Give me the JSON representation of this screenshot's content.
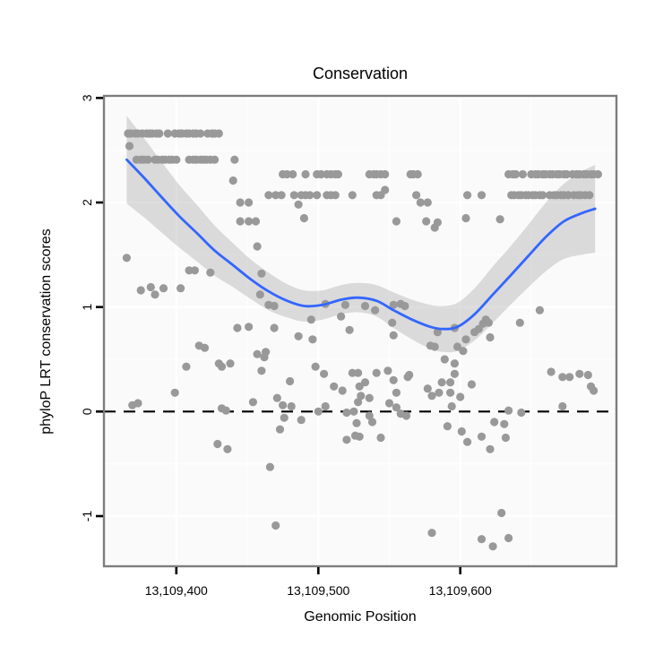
{
  "chart_data": {
    "type": "scatter",
    "title": "Conservation",
    "xlabel": "Genomic Position",
    "ylabel": "phyloP LRT conservation scores",
    "xlim": [
      13109349,
      13109710
    ],
    "ylim": [
      -1.48,
      3.02
    ],
    "x_ticks": [
      13109400,
      13109500,
      13109600
    ],
    "x_tick_labels": [
      "13,109,400",
      "13,109,500",
      "13,109,600"
    ],
    "y_ticks": [
      -1,
      0,
      1,
      2,
      3
    ],
    "y_tick_labels": [
      "-1",
      "0",
      "1",
      "2",
      "3"
    ],
    "x_minor": [
      13109450,
      13109550,
      13109650
    ],
    "y_minor": [
      -0.5,
      0.5,
      1.5,
      2.5
    ],
    "grid": "major+minor",
    "legend_position": "none",
    "hline": 0,
    "colors": {
      "point": "#999999",
      "smooth_line": "#3366FF",
      "ribbon": "#999999",
      "ribbon_alpha": 0.32,
      "zero_line": "#000000",
      "panel_bg": "#fafafa",
      "grid_line": "#ffffff",
      "panel_border": "#7d7d7d",
      "text": "#000000"
    },
    "smooth": [
      [
        13109365,
        2.41,
        0.42
      ],
      [
        13109377,
        2.24,
        0.38
      ],
      [
        13109389,
        2.06,
        0.34
      ],
      [
        13109402,
        1.87,
        0.3
      ],
      [
        13109415,
        1.7,
        0.27
      ],
      [
        13109427,
        1.54,
        0.24
      ],
      [
        13109440,
        1.4,
        0.21
      ],
      [
        13109452,
        1.27,
        0.19
      ],
      [
        13109465,
        1.15,
        0.18
      ],
      [
        13109478,
        1.06,
        0.16
      ],
      [
        13109490,
        1.01,
        0.15
      ],
      [
        13109503,
        1.02,
        0.14
      ],
      [
        13109516,
        1.07,
        0.14
      ],
      [
        13109528,
        1.09,
        0.14
      ],
      [
        13109541,
        1.06,
        0.15
      ],
      [
        13109553,
        0.97,
        0.17
      ],
      [
        13109566,
        0.88,
        0.19
      ],
      [
        13109579,
        0.81,
        0.21
      ],
      [
        13109588,
        0.79,
        0.22
      ],
      [
        13109598,
        0.81,
        0.23
      ],
      [
        13109610,
        0.93,
        0.25
      ],
      [
        13109623,
        1.12,
        0.27
      ],
      [
        13109636,
        1.31,
        0.28
      ],
      [
        13109648,
        1.49,
        0.3
      ],
      [
        13109661,
        1.68,
        0.33
      ],
      [
        13109673,
        1.82,
        0.36
      ],
      [
        13109686,
        1.9,
        0.4
      ],
      [
        13109695,
        1.94,
        0.42
      ]
    ],
    "points": [
      [
        13109366,
        2.66
      ],
      [
        13109368,
        2.66
      ],
      [
        13109371,
        2.66
      ],
      [
        13109373,
        2.66
      ],
      [
        13109376,
        2.66
      ],
      [
        13109379,
        2.66
      ],
      [
        13109381,
        2.66
      ],
      [
        13109383,
        2.66
      ],
      [
        13109386,
        2.66
      ],
      [
        13109388,
        2.66
      ],
      [
        13109394,
        2.66
      ],
      [
        13109399,
        2.66
      ],
      [
        13109402,
        2.66
      ],
      [
        13109404,
        2.66
      ],
      [
        13109407,
        2.66
      ],
      [
        13109409,
        2.66
      ],
      [
        13109412,
        2.66
      ],
      [
        13109414,
        2.66
      ],
      [
        13109417,
        2.66
      ],
      [
        13109422,
        2.66
      ],
      [
        13109425,
        2.66
      ],
      [
        13109427,
        2.66
      ],
      [
        13109430,
        2.66
      ],
      [
        13109367,
        2.54
      ],
      [
        13109372,
        2.41
      ],
      [
        13109375,
        2.41
      ],
      [
        13109377,
        2.41
      ],
      [
        13109380,
        2.41
      ],
      [
        13109385,
        2.41
      ],
      [
        13109387,
        2.41
      ],
      [
        13109390,
        2.41
      ],
      [
        13109392,
        2.41
      ],
      [
        13109395,
        2.41
      ],
      [
        13109397,
        2.41
      ],
      [
        13109400,
        2.41
      ],
      [
        13109409,
        2.41
      ],
      [
        13109412,
        2.41
      ],
      [
        13109414,
        2.41
      ],
      [
        13109417,
        2.41
      ],
      [
        13109419,
        2.41
      ],
      [
        13109421,
        2.41
      ],
      [
        13109424,
        2.41
      ],
      [
        13109427,
        2.41
      ],
      [
        13109441,
        2.41
      ],
      [
        13109440,
        2.21
      ],
      [
        13109547,
        2.12
      ],
      [
        13109475,
        2.27
      ],
      [
        13109478,
        2.27
      ],
      [
        13109482,
        2.27
      ],
      [
        13109491,
        2.27
      ],
      [
        13109499,
        2.27
      ],
      [
        13109502,
        2.27
      ],
      [
        13109506,
        2.27
      ],
      [
        13109509,
        2.27
      ],
      [
        13109512,
        2.27
      ],
      [
        13109514,
        2.27
      ],
      [
        13109536,
        2.27
      ],
      [
        13109539,
        2.27
      ],
      [
        13109541,
        2.27
      ],
      [
        13109544,
        2.27
      ],
      [
        13109547,
        2.27
      ],
      [
        13109565,
        2.27
      ],
      [
        13109567,
        2.27
      ],
      [
        13109570,
        2.27
      ],
      [
        13109634,
        2.27
      ],
      [
        13109637,
        2.27
      ],
      [
        13109639,
        2.27
      ],
      [
        13109644,
        2.27
      ],
      [
        13109650,
        2.27
      ],
      [
        13109653,
        2.27
      ],
      [
        13109655,
        2.27
      ],
      [
        13109658,
        2.27
      ],
      [
        13109660,
        2.27
      ],
      [
        13109663,
        2.27
      ],
      [
        13109665,
        2.27
      ],
      [
        13109668,
        2.27
      ],
      [
        13109670,
        2.27
      ],
      [
        13109673,
        2.27
      ],
      [
        13109675,
        2.27
      ],
      [
        13109679,
        2.27
      ],
      [
        13109682,
        2.27
      ],
      [
        13109684,
        2.27
      ],
      [
        13109687,
        2.27
      ],
      [
        13109689,
        2.27
      ],
      [
        13109692,
        2.27
      ],
      [
        13109694,
        2.27
      ],
      [
        13109697,
        2.27
      ],
      [
        13109465,
        2.07
      ],
      [
        13109470,
        2.07
      ],
      [
        13109474,
        2.07
      ],
      [
        13109483,
        2.07
      ],
      [
        13109488,
        2.07
      ],
      [
        13109491,
        2.07
      ],
      [
        13109494,
        2.07
      ],
      [
        13109499,
        2.07
      ],
      [
        13109506,
        2.07
      ],
      [
        13109509,
        2.07
      ],
      [
        13109512,
        2.07
      ],
      [
        13109524,
        2.07
      ],
      [
        13109541,
        2.07
      ],
      [
        13109544,
        2.07
      ],
      [
        13109569,
        2.07
      ],
      [
        13109605,
        2.07
      ],
      [
        13109615,
        2.07
      ],
      [
        13109636,
        2.07
      ],
      [
        13109638,
        2.07
      ],
      [
        13109641,
        2.07
      ],
      [
        13109643,
        2.07
      ],
      [
        13109646,
        2.07
      ],
      [
        13109648,
        2.07
      ],
      [
        13109651,
        2.07
      ],
      [
        13109653,
        2.07
      ],
      [
        13109656,
        2.07
      ],
      [
        13109658,
        2.07
      ],
      [
        13109663,
        2.07
      ],
      [
        13109666,
        2.07
      ],
      [
        13109668,
        2.07
      ],
      [
        13109671,
        2.07
      ],
      [
        13109673,
        2.07
      ],
      [
        13109676,
        2.07
      ],
      [
        13109680,
        2.07
      ],
      [
        13109683,
        2.07
      ],
      [
        13109685,
        2.07
      ],
      [
        13109688,
        2.07
      ],
      [
        13109691,
        2.07
      ],
      [
        13109445,
        2.0
      ],
      [
        13109451,
        2.0
      ],
      [
        13109486,
        1.98
      ],
      [
        13109572,
        2.0
      ],
      [
        13109577,
        2.0
      ],
      [
        13109445,
        1.82
      ],
      [
        13109451,
        1.82
      ],
      [
        13109456,
        1.82
      ],
      [
        13109490,
        1.85
      ],
      [
        13109555,
        1.82
      ],
      [
        13109576,
        1.82
      ],
      [
        13109582,
        1.76
      ],
      [
        13109584,
        1.81
      ],
      [
        13109604,
        1.85
      ],
      [
        13109628,
        1.84
      ],
      [
        13109457,
        1.58
      ],
      [
        13109365,
        1.47
      ],
      [
        13109375,
        1.16
      ],
      [
        13109382,
        1.19
      ],
      [
        13109385,
        1.12
      ],
      [
        13109391,
        1.18
      ],
      [
        13109403,
        1.18
      ],
      [
        13109409,
        1.35
      ],
      [
        13109413,
        1.35
      ],
      [
        13109424,
        1.33
      ],
      [
        13109460,
        1.32
      ],
      [
        13109459,
        1.12
      ],
      [
        13109465,
        1.02
      ],
      [
        13109469,
        1.01
      ],
      [
        13109505,
        1.03
      ],
      [
        13109519,
        1.02
      ],
      [
        13109533,
        1.01
      ],
      [
        13109540,
        0.97
      ],
      [
        13109553,
        1.02
      ],
      [
        13109558,
        1.03
      ],
      [
        13109561,
        1.01
      ],
      [
        13109495,
        0.88
      ],
      [
        13109516,
        0.91
      ],
      [
        13109522,
        0.78
      ],
      [
        13109486,
        0.72
      ],
      [
        13109496,
        0.69
      ],
      [
        13109443,
        0.8
      ],
      [
        13109451,
        0.81
      ],
      [
        13109469,
        0.8
      ],
      [
        13109552,
        0.85
      ],
      [
        13109553,
        0.73
      ],
      [
        13109584,
        0.76
      ],
      [
        13109596,
        0.8
      ],
      [
        13109604,
        0.69
      ],
      [
        13109610,
        0.76
      ],
      [
        13109613,
        0.79
      ],
      [
        13109616,
        0.84
      ],
      [
        13109618,
        0.88
      ],
      [
        13109620,
        0.85
      ],
      [
        13109621,
        0.71
      ],
      [
        13109642,
        0.85
      ],
      [
        13109656,
        0.97
      ],
      [
        13109416,
        0.63
      ],
      [
        13109420,
        0.61
      ],
      [
        13109457,
        0.55
      ],
      [
        13109463,
        0.57
      ],
      [
        13109462,
        0.52
      ],
      [
        13109430,
        0.46
      ],
      [
        13109432,
        0.43
      ],
      [
        13109438,
        0.46
      ],
      [
        13109407,
        0.43
      ],
      [
        13109460,
        0.39
      ],
      [
        13109498,
        0.43
      ],
      [
        13109579,
        0.63
      ],
      [
        13109582,
        0.62
      ],
      [
        13109598,
        0.62
      ],
      [
        13109602,
        0.58
      ],
      [
        13109589,
        0.5
      ],
      [
        13109596,
        0.46
      ],
      [
        13109596,
        0.36
      ],
      [
        13109528,
        0.37
      ],
      [
        13109529,
        0.24
      ],
      [
        13109541,
        0.37
      ],
      [
        13109549,
        0.39
      ],
      [
        13109564,
        0.35
      ],
      [
        13109480,
        0.29
      ],
      [
        13109504,
        0.36
      ],
      [
        13109511,
        0.24
      ],
      [
        13109517,
        0.2
      ],
      [
        13109524,
        0.37
      ],
      [
        13109533,
        0.28
      ],
      [
        13109553,
        0.3
      ],
      [
        13109563,
        0.33
      ],
      [
        13109555,
        0.18
      ],
      [
        13109577,
        0.22
      ],
      [
        13109587,
        0.28
      ],
      [
        13109593,
        0.28
      ],
      [
        13109608,
        0.26
      ],
      [
        13109664,
        0.38
      ],
      [
        13109672,
        0.33
      ],
      [
        13109677,
        0.33
      ],
      [
        13109684,
        0.36
      ],
      [
        13109690,
        0.35
      ],
      [
        13109692,
        0.24
      ],
      [
        13109694,
        0.2
      ],
      [
        13109399,
        0.18
      ],
      [
        13109369,
        0.06
      ],
      [
        13109373,
        0.08
      ],
      [
        13109432,
        0.03
      ],
      [
        13109435,
        0.01
      ],
      [
        13109454,
        0.09
      ],
      [
        13109471,
        0.13
      ],
      [
        13109475,
        0.06
      ],
      [
        13109481,
        0.05
      ],
      [
        13109500,
        0.0
      ],
      [
        13109505,
        0.05
      ],
      [
        13109634,
        0.01
      ],
      [
        13109643,
        -0.01
      ],
      [
        13109672,
        0.05
      ],
      [
        13109530,
        0.15
      ],
      [
        13109536,
        0.13
      ],
      [
        13109550,
        0.08
      ],
      [
        13109580,
        0.15
      ],
      [
        13109585,
        0.18
      ],
      [
        13109593,
        0.18
      ],
      [
        13109600,
        0.14
      ],
      [
        13109594,
        0.05
      ],
      [
        13109528,
        0.09
      ],
      [
        13109525,
        0.0
      ],
      [
        13109555,
        0.04
      ],
      [
        13109520,
        -0.01
      ],
      [
        13109558,
        -0.02
      ],
      [
        13109562,
        -0.04
      ],
      [
        13109536,
        -0.04
      ],
      [
        13109538,
        -0.1
      ],
      [
        13109476,
        -0.06
      ],
      [
        13109473,
        -0.17
      ],
      [
        13109488,
        -0.08
      ],
      [
        13109527,
        -0.11
      ],
      [
        13109520,
        -0.27
      ],
      [
        13109526,
        -0.23
      ],
      [
        13109429,
        -0.31
      ],
      [
        13109436,
        -0.36
      ],
      [
        13109466,
        -0.53
      ],
      [
        13109529,
        -0.24
      ],
      [
        13109544,
        -0.25
      ],
      [
        13109591,
        -0.14
      ],
      [
        13109601,
        -0.19
      ],
      [
        13109605,
        -0.29
      ],
      [
        13109615,
        -0.24
      ],
      [
        13109621,
        -0.36
      ],
      [
        13109624,
        -0.1
      ],
      [
        13109631,
        -0.12
      ],
      [
        13109632,
        -0.25
      ],
      [
        13109470,
        -1.09
      ],
      [
        13109629,
        -0.97
      ],
      [
        13109580,
        -1.16
      ],
      [
        13109615,
        -1.22
      ],
      [
        13109623,
        -1.29
      ],
      [
        13109634,
        -1.21
      ]
    ]
  }
}
